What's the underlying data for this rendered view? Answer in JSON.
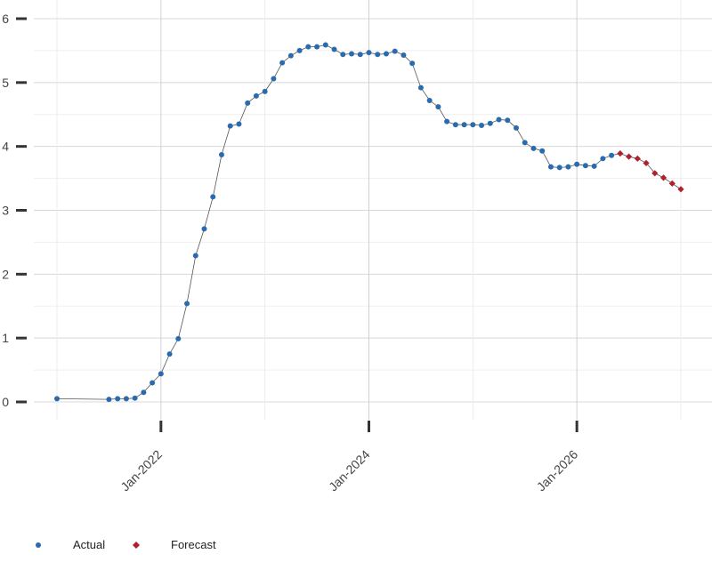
{
  "chart_data": {
    "type": "line",
    "title": "",
    "xlabel": "",
    "ylabel": "",
    "ylim": [
      0,
      6
    ],
    "yticks": [
      "0",
      "1",
      "2",
      "3",
      "4",
      "5",
      "6"
    ],
    "xticks": [
      "Jan-2022",
      "Jan-2024",
      "Jan-2026"
    ],
    "grid": true,
    "legend_position": "bottom-left",
    "series": [
      {
        "name": "Actual",
        "color": "#2a6bb0",
        "marker": "circle",
        "x": [
          "2021-01",
          "2021-02",
          "2021-03",
          "2021-04",
          "2021-05",
          "2021-06",
          "2021-07",
          "2021-08",
          "2021-09",
          "2021-10",
          "2021-11",
          "2021-12",
          "2022-01",
          "2022-02",
          "2022-03",
          "2022-04",
          "2022-05",
          "2022-06",
          "2022-07",
          "2022-08",
          "2022-09",
          "2022-10",
          "2022-11",
          "2022-12",
          "2023-01",
          "2023-02",
          "2023-03",
          "2023-04",
          "2023-05",
          "2023-06",
          "2023-07",
          "2023-08",
          "2023-09",
          "2023-10",
          "2023-11",
          "2023-12",
          "2024-01",
          "2024-02",
          "2024-03",
          "2024-04",
          "2024-05",
          "2024-06",
          "2024-07",
          "2024-08",
          "2024-09",
          "2024-10",
          "2024-11",
          "2024-12",
          "2025-01",
          "2025-02",
          "2025-03",
          "2025-04",
          "2025-05",
          "2025-06",
          "2025-07",
          "2025-08",
          "2025-09",
          "2025-10",
          "2025-11",
          "2025-12",
          "2026-01",
          "2026-02",
          "2026-03",
          "2026-04",
          "2026-05",
          "2026-06",
          "2026-07",
          "2026-08",
          "2026-09",
          "2026-10",
          "2026-11",
          "2026-12",
          "2027-01",
          "2027-02",
          "2027-03",
          "2027-04",
          "2027-05",
          "2027-06"
        ],
        "values": [
          0.05,
          null,
          null,
          null,
          null,
          null,
          0.04,
          0.05,
          0.05,
          0.06,
          0.15,
          0.3,
          0.44,
          0.75,
          0.99,
          1.54,
          2.29,
          2.71,
          3.21,
          3.87,
          4.32,
          4.35,
          4.68,
          4.79,
          4.86,
          5.06,
          5.31,
          5.42,
          5.5,
          5.56,
          5.56,
          5.59,
          5.52,
          5.44,
          5.45,
          5.44,
          5.47,
          5.44,
          5.45,
          5.49,
          5.43,
          5.3,
          4.92,
          4.72,
          4.62,
          4.39,
          4.34,
          4.34,
          4.34,
          4.33,
          4.36,
          4.42,
          4.41,
          4.29,
          4.06,
          3.97,
          3.93,
          3.68,
          3.67,
          3.68,
          3.72,
          3.7,
          3.69,
          3.81,
          3.86,
          null,
          null,
          null,
          null,
          null,
          null,
          null,
          null,
          null,
          null,
          null,
          null,
          null
        ]
      },
      {
        "name": "Forecast",
        "color": "#b21f2d",
        "marker": "diamond",
        "values": [
          null,
          null,
          null,
          null,
          null,
          null,
          null,
          null,
          null,
          null,
          null,
          null,
          null,
          null,
          null,
          null,
          null,
          null,
          null,
          null,
          null,
          null,
          null,
          null,
          null,
          null,
          null,
          null,
          null,
          null,
          null,
          null,
          null,
          null,
          null,
          null,
          null,
          null,
          null,
          null,
          null,
          null,
          null,
          null,
          null,
          null,
          null,
          null,
          null,
          null,
          null,
          null,
          null,
          null,
          null,
          null,
          null,
          null,
          null,
          null,
          null,
          null,
          null,
          null,
          null,
          3.89,
          3.84,
          3.81,
          3.74,
          3.58,
          3.51,
          3.42,
          3.33,
          null,
          null,
          null,
          null,
          null
        ]
      }
    ]
  },
  "legend": {
    "actual_label": "Actual",
    "forecast_label": "Forecast"
  }
}
